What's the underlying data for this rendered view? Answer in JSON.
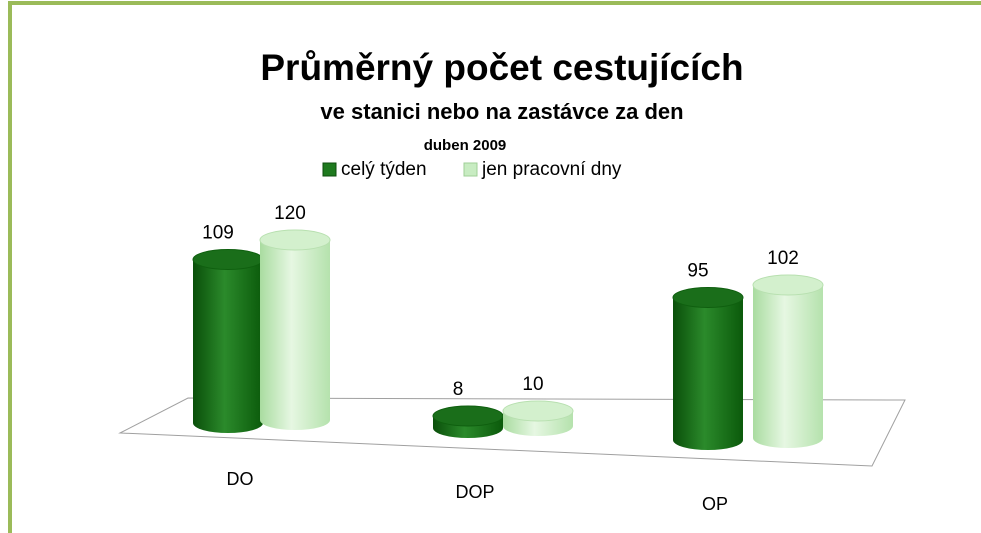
{
  "chart_data": {
    "type": "cylinder-bar",
    "title": "Průměrný počet cestujících",
    "subtitle": "ve stanici nebo na zastávce za den",
    "subtitle2": "duben 2009",
    "categories": [
      "DO",
      "DOP",
      "OP"
    ],
    "series": [
      {
        "name": "celý týden",
        "color": "#1f7a1f",
        "values": [
          109,
          8,
          95
        ]
      },
      {
        "name": "jen pracovní dny",
        "color": "#c8ecc2",
        "values": [
          120,
          10,
          102
        ]
      }
    ]
  }
}
